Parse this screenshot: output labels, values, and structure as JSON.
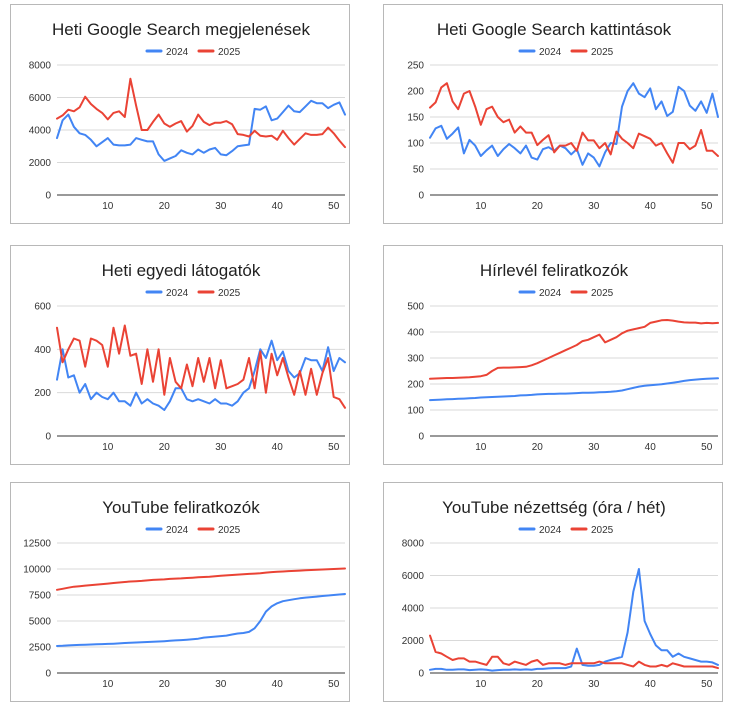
{
  "colors": {
    "series2024": "#4285F4",
    "series2025": "#EA4335",
    "grid": "#d9d9d9",
    "axis": "#333333"
  },
  "chart_data": [
    {
      "type": "line",
      "title": "Heti Google Search megjelenések",
      "xlabel": "",
      "ylabel": "",
      "xlim": [
        1,
        52
      ],
      "ylim": [
        0,
        8000
      ],
      "yticks": [
        0,
        2000,
        4000,
        6000,
        8000
      ],
      "xticks": [
        10,
        20,
        30,
        40,
        50
      ],
      "grid": true,
      "legend": "top",
      "series": [
        {
          "name": "2024",
          "values": [
            3500,
            4600,
            4950,
            4200,
            3800,
            3700,
            3400,
            3000,
            3250,
            3500,
            3100,
            3050,
            3050,
            3100,
            3500,
            3400,
            3300,
            3300,
            2500,
            2100,
            2250,
            2400,
            2750,
            2600,
            2500,
            2800,
            2600,
            2800,
            2900,
            2500,
            2450,
            2700,
            3000,
            3050,
            3100,
            5300,
            5250,
            5450,
            4600,
            4700,
            5100,
            5500,
            5150,
            5100,
            5450,
            5800,
            5650,
            5650,
            5350,
            5550,
            5700,
            4950
          ]
        },
        {
          "name": "2025",
          "values": [
            4700,
            4900,
            5250,
            5150,
            5400,
            6050,
            5600,
            5300,
            5050,
            4650,
            5050,
            5150,
            4800,
            7150,
            5500,
            4000,
            4000,
            4500,
            4950,
            4400,
            4200,
            4400,
            4550,
            3900,
            4250,
            4950,
            4500,
            4300,
            4450,
            4450,
            4550,
            4350,
            3750,
            3700,
            3600,
            3950,
            3650,
            3600,
            3650,
            3400,
            3950,
            3500,
            3100,
            3450,
            3800,
            3700,
            3700,
            3750,
            4150,
            3800,
            3350,
            2950
          ]
        }
      ]
    },
    {
      "type": "line",
      "title": "Heti Google Search kattintások",
      "xlabel": "",
      "ylabel": "",
      "xlim": [
        1,
        52
      ],
      "ylim": [
        0,
        250
      ],
      "yticks": [
        0,
        50,
        100,
        150,
        200,
        250
      ],
      "xticks": [
        10,
        20,
        30,
        40,
        50
      ],
      "grid": true,
      "legend": "top",
      "series": [
        {
          "name": "2024",
          "values": [
            110,
            128,
            133,
            108,
            118,
            130,
            80,
            106,
            95,
            75,
            86,
            95,
            75,
            88,
            98,
            90,
            80,
            95,
            72,
            68,
            88,
            92,
            85,
            95,
            90,
            78,
            88,
            58,
            80,
            72,
            55,
            82,
            100,
            98,
            170,
            200,
            215,
            195,
            188,
            205,
            165,
            180,
            152,
            160,
            208,
            200,
            172,
            162,
            180,
            158,
            195,
            150
          ]
        },
        {
          "name": "2025",
          "values": [
            168,
            178,
            207,
            215,
            180,
            165,
            195,
            200,
            170,
            135,
            165,
            170,
            150,
            140,
            145,
            120,
            132,
            120,
            120,
            96,
            106,
            115,
            82,
            95,
            95,
            100,
            85,
            120,
            105,
            105,
            90,
            100,
            78,
            122,
            108,
            100,
            90,
            118,
            113,
            108,
            95,
            100,
            80,
            62,
            100,
            100,
            88,
            95,
            125,
            85,
            85,
            75
          ]
        }
      ]
    },
    {
      "type": "line",
      "title": "Heti egyedi látogatók",
      "xlabel": "",
      "ylabel": "",
      "xlim": [
        1,
        52
      ],
      "ylim": [
        0,
        600
      ],
      "yticks": [
        0,
        200,
        400,
        600
      ],
      "xticks": [
        10,
        20,
        30,
        40,
        50
      ],
      "grid": true,
      "legend": "top",
      "series": [
        {
          "name": "2024",
          "values": [
            260,
            400,
            270,
            280,
            200,
            240,
            170,
            200,
            180,
            170,
            200,
            160,
            160,
            140,
            200,
            150,
            170,
            150,
            140,
            120,
            160,
            220,
            220,
            170,
            160,
            170,
            160,
            150,
            170,
            150,
            150,
            140,
            160,
            200,
            220,
            300,
            400,
            360,
            440,
            350,
            390,
            300,
            270,
            290,
            360,
            350,
            350,
            300,
            410,
            300,
            360,
            340
          ]
        },
        {
          "name": "2025",
          "values": [
            500,
            340,
            400,
            450,
            440,
            320,
            450,
            440,
            420,
            320,
            500,
            380,
            510,
            370,
            380,
            240,
            400,
            250,
            400,
            190,
            360,
            250,
            220,
            330,
            230,
            360,
            250,
            360,
            220,
            350,
            220,
            230,
            240,
            260,
            360,
            220,
            390,
            200,
            380,
            280,
            360,
            270,
            190,
            300,
            190,
            310,
            190,
            290,
            360,
            180,
            170,
            130
          ]
        }
      ]
    },
    {
      "type": "line",
      "title": "Hírlevél feliratkozók",
      "xlabel": "",
      "ylabel": "",
      "xlim": [
        1,
        52
      ],
      "ylim": [
        0,
        500
      ],
      "yticks": [
        0,
        100,
        200,
        300,
        400,
        500
      ],
      "xticks": [
        10,
        20,
        30,
        40,
        50
      ],
      "grid": true,
      "legend": "top",
      "series": [
        {
          "name": "2024",
          "values": [
            138,
            139,
            140,
            141,
            142,
            143,
            144,
            145,
            146,
            148,
            149,
            150,
            151,
            152,
            153,
            154,
            156,
            157,
            158,
            160,
            161,
            162,
            162,
            163,
            163,
            164,
            165,
            166,
            166,
            167,
            168,
            169,
            170,
            172,
            175,
            180,
            185,
            190,
            193,
            195,
            197,
            199,
            202,
            205,
            208,
            212,
            215,
            217,
            219,
            220,
            221,
            222
          ]
        },
        {
          "name": "2025",
          "values": [
            220,
            221,
            222,
            223,
            223,
            224,
            225,
            226,
            228,
            230,
            235,
            250,
            262,
            263,
            263,
            264,
            265,
            266,
            272,
            280,
            290,
            300,
            310,
            320,
            330,
            340,
            350,
            365,
            370,
            380,
            390,
            360,
            370,
            380,
            395,
            405,
            410,
            415,
            420,
            435,
            440,
            445,
            446,
            444,
            440,
            437,
            436,
            436,
            433,
            435,
            434,
            435
          ]
        }
      ]
    },
    {
      "type": "line",
      "title": "YouTube feliratkozók",
      "xlabel": "",
      "ylabel": "",
      "xlim": [
        1,
        52
      ],
      "ylim": [
        0,
        12500
      ],
      "yticks": [
        0,
        2500,
        5000,
        7500,
        10000,
        12500
      ],
      "xticks": [
        10,
        20,
        30,
        40,
        50
      ],
      "grid": true,
      "legend": "top",
      "series": [
        {
          "name": "2024",
          "values": [
            2600,
            2620,
            2650,
            2680,
            2700,
            2720,
            2740,
            2760,
            2780,
            2800,
            2820,
            2850,
            2880,
            2900,
            2930,
            2950,
            2980,
            3000,
            3030,
            3060,
            3100,
            3130,
            3160,
            3200,
            3250,
            3300,
            3400,
            3450,
            3500,
            3550,
            3600,
            3700,
            3800,
            3850,
            3950,
            4300,
            5000,
            5900,
            6400,
            6700,
            6900,
            7000,
            7100,
            7180,
            7250,
            7300,
            7350,
            7400,
            7450,
            7500,
            7550,
            7600
          ]
        },
        {
          "name": "2025",
          "values": [
            8000,
            8100,
            8200,
            8300,
            8350,
            8400,
            8450,
            8500,
            8550,
            8600,
            8650,
            8700,
            8750,
            8800,
            8830,
            8860,
            8900,
            8950,
            8980,
            9000,
            9050,
            9080,
            9100,
            9130,
            9160,
            9200,
            9230,
            9250,
            9300,
            9350,
            9380,
            9420,
            9460,
            9500,
            9530,
            9560,
            9600,
            9650,
            9700,
            9730,
            9760,
            9800,
            9820,
            9850,
            9880,
            9900,
            9920,
            9950,
            9980,
            10000,
            10020,
            10050
          ]
        }
      ]
    },
    {
      "type": "line",
      "title": "YouTube nézettség (óra / hét)",
      "xlabel": "",
      "ylabel": "",
      "xlim": [
        1,
        52
      ],
      "ylim": [
        0,
        8000
      ],
      "yticks": [
        0,
        2000,
        4000,
        6000,
        8000
      ],
      "xticks": [
        10,
        20,
        30,
        40,
        50
      ],
      "grid": true,
      "legend": "top",
      "series": [
        {
          "name": "2024",
          "values": [
            200,
            250,
            250,
            200,
            200,
            220,
            220,
            180,
            200,
            220,
            200,
            150,
            180,
            200,
            200,
            220,
            200,
            220,
            200,
            250,
            250,
            280,
            300,
            300,
            300,
            400,
            1500,
            500,
            450,
            450,
            500,
            700,
            800,
            900,
            1000,
            2500,
            5000,
            6400,
            3200,
            2400,
            1700,
            1400,
            1400,
            1000,
            1200,
            1000,
            900,
            800,
            700,
            700,
            650,
            500
          ]
        },
        {
          "name": "2025",
          "values": [
            2300,
            1300,
            1200,
            1000,
            800,
            900,
            900,
            700,
            700,
            600,
            500,
            1000,
            1000,
            600,
            500,
            700,
            600,
            500,
            700,
            800,
            500,
            600,
            600,
            600,
            500,
            600,
            600,
            600,
            600,
            600,
            700,
            600,
            600,
            600,
            600,
            500,
            400,
            700,
            500,
            400,
            400,
            500,
            400,
            600,
            500,
            400,
            400,
            400,
            400,
            400,
            400,
            300
          ]
        }
      ]
    }
  ]
}
